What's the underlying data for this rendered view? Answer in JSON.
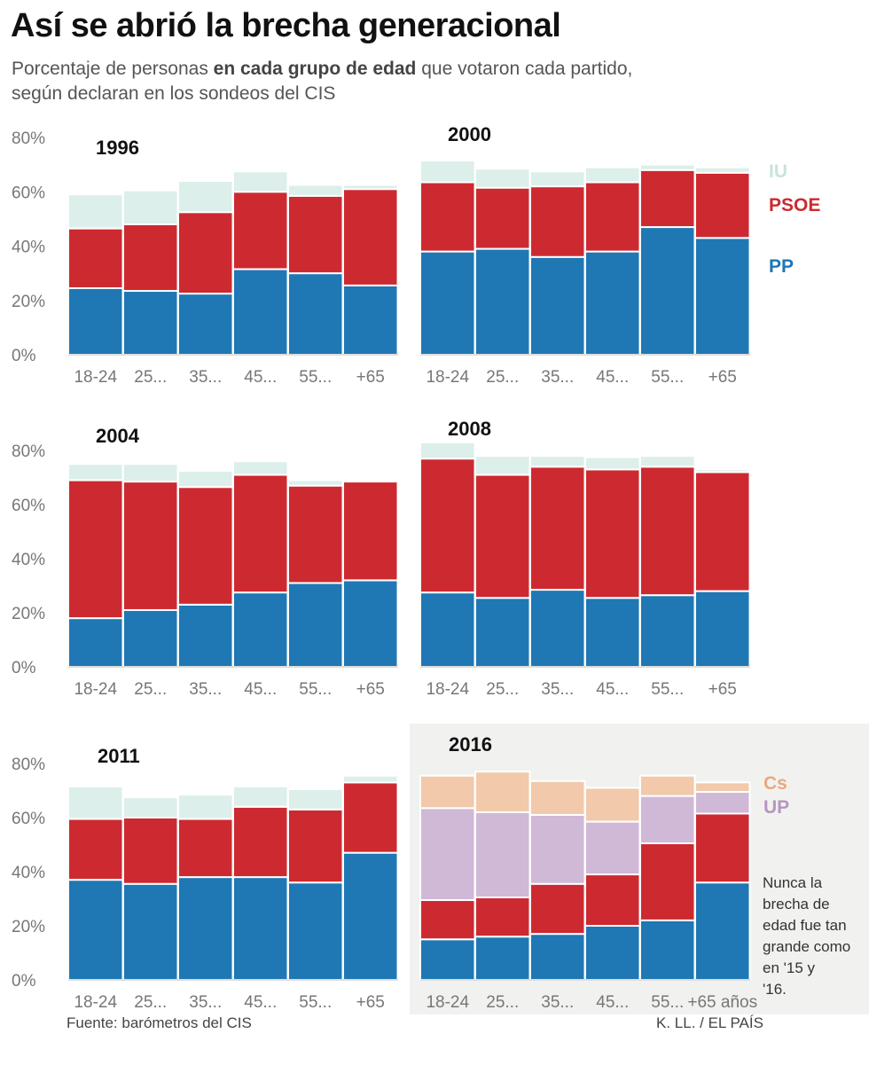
{
  "header": {
    "title": "Así se abrió la brecha generacional",
    "subtitle_pre": "Porcentaje de personas ",
    "subtitle_bold": "en cada grupo de edad",
    "subtitle_post": " que votaron cada partido, según declaran en los sondeos del CIS"
  },
  "footer": {
    "source": "Fuente: barómetros del CIS",
    "credit": "K. LL. / EL PAÍS"
  },
  "colors": {
    "PP": "#1f77b4",
    "PSOE": "#cc2a30",
    "IU": "#dcefea",
    "UP": "#d0b8d7",
    "Cs": "#f2c9aa",
    "highlight_bg": "#f1f2f0",
    "axis_text": "#777777"
  },
  "chart_data": [
    {
      "type": "bar",
      "stacked": true,
      "year": "1996",
      "categories": [
        "18-24",
        "25...",
        "35...",
        "45...",
        "55...",
        "+65"
      ],
      "yticks": [
        "0%",
        "20%",
        "40%",
        "60%",
        "80%"
      ],
      "ylim": [
        0,
        80
      ],
      "series": [
        {
          "name": "PP",
          "values": [
            24.5,
            23.5,
            22.5,
            31.5,
            30,
            25.5
          ]
        },
        {
          "name": "PSOE",
          "values": [
            22,
            24.5,
            30,
            28.5,
            28.5,
            35.5
          ]
        },
        {
          "name": "IU",
          "values": [
            12.5,
            12.5,
            11.5,
            7.5,
            4,
            1.5
          ]
        }
      ]
    },
    {
      "type": "bar",
      "stacked": true,
      "year": "2000",
      "categories": [
        "18-24",
        "25...",
        "35...",
        "45...",
        "55...",
        "+65"
      ],
      "ylim": [
        0,
        80
      ],
      "series": [
        {
          "name": "PP",
          "values": [
            38,
            39,
            36,
            38,
            47,
            43
          ]
        },
        {
          "name": "PSOE",
          "values": [
            25.5,
            22.5,
            26,
            25.5,
            21,
            24
          ]
        },
        {
          "name": "IU",
          "values": [
            8,
            7,
            5.5,
            5.5,
            2,
            2
          ]
        }
      ],
      "legend": [
        "IU",
        "PSOE",
        "PP"
      ]
    },
    {
      "type": "bar",
      "stacked": true,
      "year": "2004",
      "categories": [
        "18-24",
        "25...",
        "35...",
        "45...",
        "55...",
        "+65"
      ],
      "yticks": [
        "0%",
        "20%",
        "40%",
        "60%",
        "80%"
      ],
      "ylim": [
        0,
        80
      ],
      "series": [
        {
          "name": "PP",
          "values": [
            18,
            21,
            23,
            27.5,
            31,
            32
          ]
        },
        {
          "name": "PSOE",
          "values": [
            51,
            47.5,
            43.5,
            43.5,
            36,
            36.5
          ]
        },
        {
          "name": "IU",
          "values": [
            6,
            6.5,
            6,
            5,
            2,
            0
          ]
        }
      ]
    },
    {
      "type": "bar",
      "stacked": true,
      "year": "2008",
      "categories": [
        "18-24",
        "25...",
        "35...",
        "45...",
        "55...",
        "+65"
      ],
      "ylim": [
        0,
        80
      ],
      "series": [
        {
          "name": "PP",
          "values": [
            27.5,
            25.5,
            28.5,
            25.5,
            26.5,
            28
          ]
        },
        {
          "name": "PSOE",
          "values": [
            49.5,
            45.5,
            45.5,
            47.5,
            47.5,
            44
          ]
        },
        {
          "name": "IU",
          "values": [
            6,
            7,
            4,
            4.5,
            4,
            1
          ]
        }
      ]
    },
    {
      "type": "bar",
      "stacked": true,
      "year": "2011",
      "categories": [
        "18-24",
        "25...",
        "35...",
        "45...",
        "55...",
        "+65"
      ],
      "yticks": [
        "0%",
        "20%",
        "40%",
        "60%",
        "80%"
      ],
      "ylim": [
        0,
        80
      ],
      "series": [
        {
          "name": "PP",
          "values": [
            37,
            35.5,
            38,
            38,
            36,
            47
          ]
        },
        {
          "name": "PSOE",
          "values": [
            22.5,
            24.5,
            21.5,
            26,
            27,
            26
          ]
        },
        {
          "name": "IU",
          "values": [
            12,
            7.5,
            9,
            7.5,
            7.5,
            2.5
          ]
        }
      ]
    },
    {
      "type": "bar",
      "stacked": true,
      "year": "2016",
      "highlighted": true,
      "categories": [
        "18-24",
        "25...",
        "35...",
        "45...",
        "55...",
        "+65 años"
      ],
      "ylim": [
        0,
        80
      ],
      "series": [
        {
          "name": "PP",
          "values": [
            15,
            16,
            17,
            20,
            22,
            36
          ]
        },
        {
          "name": "PSOE",
          "values": [
            14.5,
            14.5,
            18.5,
            19,
            28.5,
            25.5
          ]
        },
        {
          "name": "UP",
          "values": [
            34,
            31.5,
            25.5,
            19.5,
            17.5,
            8
          ]
        },
        {
          "name": "Cs",
          "values": [
            12,
            15,
            12.5,
            12.5,
            7.5,
            3.5
          ]
        }
      ],
      "legend": [
        "Cs",
        "UP"
      ],
      "annotation": "Nunca la brecha de edad fue tan grande como en '15 y '16."
    }
  ]
}
